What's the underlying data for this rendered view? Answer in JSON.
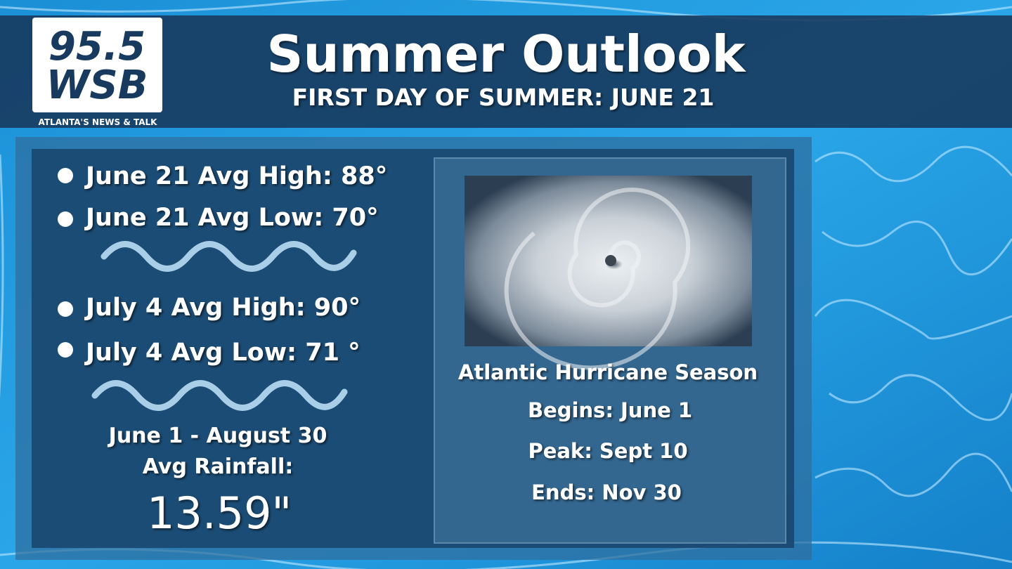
{
  "header": {
    "logo_number": "95.5",
    "logo_station": "WSB",
    "logo_tagline": "ATLANTA'S NEWS & TALK",
    "title": "Summer Outlook",
    "subtitle": "FIRST DAY OF SUMMER: JUNE 21"
  },
  "temperatures": [
    "June 21 Avg High: 88°",
    "June 21 Avg Low: 70°",
    "July 4 Avg High: 90°",
    "July 4 Avg Low: 71 °"
  ],
  "rainfall": {
    "period": "June 1 - August 30",
    "label": "Avg Rainfall:",
    "value": "13.59\""
  },
  "hurricane": {
    "title": "Atlantic Hurricane Season",
    "begins": "Begins: June 1",
    "peak": "Peak: Sept 10",
    "ends": "Ends: Nov 30"
  }
}
